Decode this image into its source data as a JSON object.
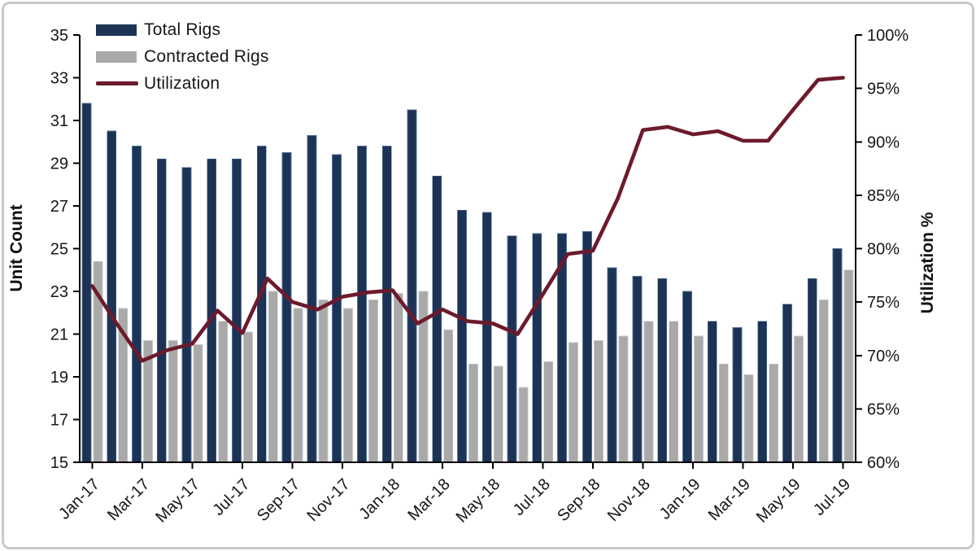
{
  "chart_data": {
    "type": "combo (dual-axis: grouped bars + line)",
    "categories": [
      "Jan-17",
      "Feb-17",
      "Mar-17",
      "Apr-17",
      "May-17",
      "Jun-17",
      "Jul-17",
      "Aug-17",
      "Sep-17",
      "Oct-17",
      "Nov-17",
      "Dec-17",
      "Jan-18",
      "Feb-18",
      "Mar-18",
      "Apr-18",
      "May-18",
      "Jun-18",
      "Jul-18",
      "Aug-18",
      "Sep-18",
      "Oct-18",
      "Nov-18",
      "Dec-18",
      "Jan-19",
      "Feb-19",
      "Mar-19",
      "Apr-19",
      "May-19",
      "Jun-19",
      "Jul-19"
    ],
    "series": [
      {
        "name": "Total Rigs",
        "type": "bar",
        "axis": "left",
        "color": "#1d3355",
        "values": [
          31.8,
          30.5,
          29.8,
          29.2,
          28.8,
          29.2,
          29.2,
          29.8,
          29.5,
          30.3,
          29.4,
          29.8,
          29.8,
          31.5,
          28.4,
          26.8,
          26.7,
          25.6,
          25.7,
          25.7,
          25.8,
          24.1,
          23.7,
          23.6,
          23.0,
          21.6,
          21.3,
          21.6,
          22.4,
          23.6,
          25.0
        ]
      },
      {
        "name": "Contracted Rigs",
        "type": "bar",
        "axis": "left",
        "color": "#a9a9a9",
        "values": [
          24.4,
          22.2,
          20.7,
          20.7,
          20.5,
          21.6,
          21.1,
          23.0,
          22.2,
          22.6,
          22.2,
          22.6,
          22.9,
          23.0,
          21.2,
          19.6,
          19.5,
          18.5,
          19.7,
          20.6,
          20.7,
          20.9,
          21.6,
          21.6,
          20.9,
          19.6,
          19.1,
          19.6,
          20.9,
          22.6,
          24.0
        ]
      },
      {
        "name": "Utilization",
        "type": "line",
        "axis": "right",
        "unit": "%",
        "color": "#6c1a2c",
        "values": [
          76.5,
          72.9,
          69.5,
          70.5,
          71.1,
          74.2,
          72.1,
          77.2,
          75.0,
          74.3,
          75.5,
          75.9,
          76.1,
          73.0,
          74.3,
          73.2,
          73.0,
          72.0,
          75.7,
          79.5,
          79.8,
          84.7,
          91.1,
          91.4,
          90.7,
          91.0,
          90.1,
          90.1,
          93.0,
          95.8,
          96.0
        ]
      }
    ],
    "left_axis": {
      "label": "Unit Count",
      "min": 15,
      "max": 35,
      "tick_step": 2,
      "ticks": [
        15,
        17,
        19,
        21,
        23,
        25,
        27,
        29,
        31,
        33,
        35
      ]
    },
    "right_axis": {
      "label": "Utilization %",
      "min": 60,
      "max": 100,
      "tick_step": 5,
      "ticks": [
        60,
        65,
        70,
        75,
        80,
        85,
        90,
        95,
        100
      ],
      "tick_suffix": "%"
    },
    "x_axis": {
      "label_every_n_months": 2,
      "tick_labels": [
        "Jan-17",
        "Mar-17",
        "May-17",
        "Jul-17",
        "Sep-17",
        "Nov-17",
        "Jan-18",
        "Mar-18",
        "May-18",
        "Jul-18",
        "Sep-18",
        "Nov-18",
        "Jan-19",
        "Mar-19",
        "May-19",
        "Jul-19"
      ],
      "label_rotation_deg": -45
    },
    "legend": {
      "position": "top-left",
      "items": [
        "Total Rigs",
        "Contracted Rigs",
        "Utilization"
      ]
    },
    "grid": "off",
    "text_color": "#171717",
    "axis_color": "#000000",
    "frame_border_color": "#c9c9c9"
  }
}
